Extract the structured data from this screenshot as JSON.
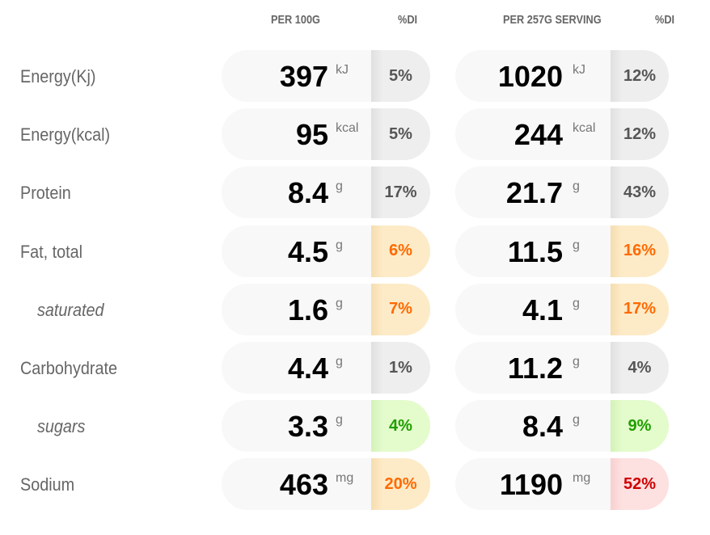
{
  "headers": {
    "per100": "PER 100G",
    "di1": "%DI",
    "perServing": "PER 257G SERVING",
    "di2": "%DI"
  },
  "rows": [
    {
      "label": "Energy(Kj)",
      "sub": false,
      "v1": "397",
      "u1": "kJ",
      "d1": "5%",
      "c1": "grey",
      "v2": "1020",
      "u2": "kJ",
      "d2": "12%",
      "c2": "grey"
    },
    {
      "label": "Energy(kcal)",
      "sub": false,
      "v1": "95",
      "u1": "kcal",
      "d1": "5%",
      "c1": "grey",
      "v2": "244",
      "u2": "kcal",
      "d2": "12%",
      "c2": "grey"
    },
    {
      "label": "Protein",
      "sub": false,
      "v1": "8.4",
      "u1": "g",
      "d1": "17%",
      "c1": "grey",
      "v2": "21.7",
      "u2": "g",
      "d2": "43%",
      "c2": "grey"
    },
    {
      "label": "Fat, total",
      "sub": false,
      "v1": "4.5",
      "u1": "g",
      "d1": "6%",
      "c1": "orange",
      "v2": "11.5",
      "u2": "g",
      "d2": "16%",
      "c2": "orange"
    },
    {
      "label": "saturated",
      "sub": true,
      "v1": "1.6",
      "u1": "g",
      "d1": "7%",
      "c1": "orange",
      "v2": "4.1",
      "u2": "g",
      "d2": "17%",
      "c2": "orange"
    },
    {
      "label": "Carbohydrate",
      "sub": false,
      "v1": "4.4",
      "u1": "g",
      "d1": "1%",
      "c1": "grey",
      "v2": "11.2",
      "u2": "g",
      "d2": "4%",
      "c2": "grey"
    },
    {
      "label": "sugars",
      "sub": true,
      "v1": "3.3",
      "u1": "g",
      "d1": "4%",
      "c1": "green",
      "v2": "8.4",
      "u2": "g",
      "d2": "9%",
      "c2": "green"
    },
    {
      "label": "Sodium",
      "sub": false,
      "v1": "463",
      "u1": "mg",
      "d1": "20%",
      "c1": "orange",
      "v2": "1190",
      "u2": "mg",
      "d2": "52%",
      "c2": "red"
    }
  ]
}
